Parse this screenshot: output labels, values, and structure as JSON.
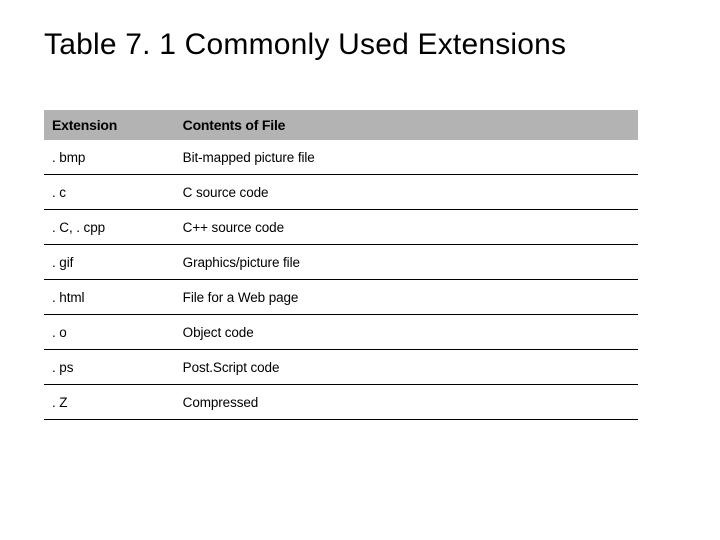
{
  "title": "Table 7. 1  Commonly Used Extensions",
  "table": {
    "columns": [
      "Extension",
      "Contents of File"
    ],
    "col_widths_pct": [
      22,
      78
    ],
    "header_bg": "#b3b3b3",
    "header_fontsize": 14,
    "header_fontweight": 700,
    "cell_fontsize": 13.5,
    "row_border_color": "#000000",
    "row_border_width": 1,
    "rows": [
      [
        ". bmp",
        "Bit-mapped picture file"
      ],
      [
        ". c",
        "C source code"
      ],
      [
        ". C, . cpp",
        "C++ source code"
      ],
      [
        ". gif",
        "Graphics/picture file"
      ],
      [
        ". html",
        "File for a Web page"
      ],
      [
        ". o",
        "Object code"
      ],
      [
        ". ps",
        "Post.Script code"
      ],
      [
        ". Z",
        "Compressed"
      ]
    ]
  },
  "title_fontsize": 30,
  "background_color": "#ffffff",
  "text_color": "#000000"
}
